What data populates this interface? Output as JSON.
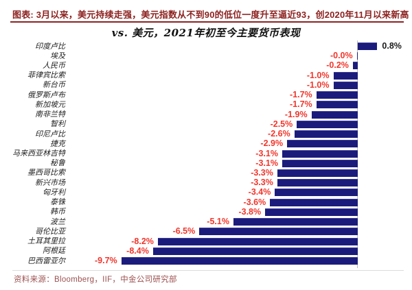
{
  "header": {
    "kicker": "图表: 3月以来，美元持续走强，美元指数从不到90的低位一度升至逼近93，创2020年11月以来新高",
    "kicker_color": "#8C2220"
  },
  "chart_data": {
    "type": "bar",
    "orientation": "horizontal",
    "title": "vs. 美元，2021年初至今主要货币表现",
    "categories": [
      "印度卢比",
      "埃及",
      "人民币",
      "菲律宾比索",
      "新台币",
      "俄罗斯卢布",
      "新加坡元",
      "南非兰特",
      "智利",
      "印尼卢比",
      "捷克",
      "马来西亚林吉特",
      "秘鲁",
      "墨西哥比索",
      "新兴市场",
      "匈牙利",
      "泰铢",
      "韩币",
      "波兰",
      "哥伦比亚",
      "土耳其里拉",
      "阿根廷",
      "巴西雷亚尔"
    ],
    "values": [
      0.8,
      -0.0,
      -0.2,
      -1.0,
      -1.0,
      -1.7,
      -1.7,
      -1.9,
      -2.5,
      -2.6,
      -2.9,
      -3.1,
      -3.1,
      -3.3,
      -3.3,
      -3.4,
      -3.6,
      -3.8,
      -5.1,
      -6.5,
      -8.2,
      -8.4,
      -9.7
    ],
    "value_labels": [
      "0.8%",
      "-0.0%",
      "-0.2%",
      "-1.0%",
      "-1.0%",
      "-1.7%",
      "-1.7%",
      "-1.9%",
      "-2.5%",
      "-2.6%",
      "-2.9%",
      "-3.1%",
      "-3.1%",
      "-3.3%",
      "-3.3%",
      "-3.4%",
      "-3.6%",
      "-3.8%",
      "-5.1%",
      "-6.5%",
      "-8.2%",
      "-8.4%",
      "-9.7%"
    ],
    "xlim": [
      -10,
      1
    ],
    "grid": false,
    "legend": false,
    "bar_color": "#1B1B7C",
    "negative_label_color": "#F2352B",
    "positive_label_color": "#1A1A1A",
    "zero_axis_color": "#BDBDBD"
  },
  "footer": {
    "source": "资料来源：Bloomberg，IIF，中金公司研究部"
  }
}
